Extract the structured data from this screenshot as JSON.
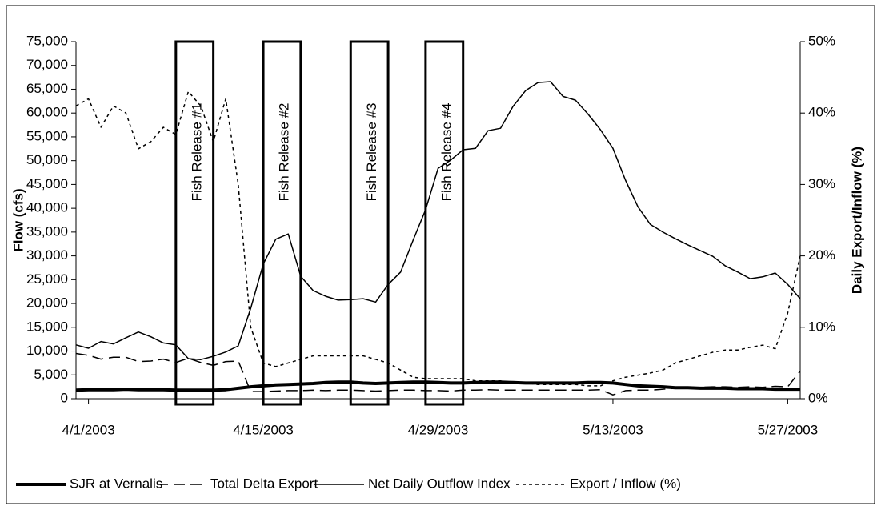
{
  "chart_data": {
    "type": "line",
    "y_label": "Flow (cfs)",
    "y2_label": "Daily Export/Inflow (%)",
    "x": [
      "2003-03-31",
      "2003-04-01",
      "2003-04-02",
      "2003-04-03",
      "2003-04-04",
      "2003-04-05",
      "2003-04-06",
      "2003-04-07",
      "2003-04-08",
      "2003-04-09",
      "2003-04-10",
      "2003-04-11",
      "2003-04-12",
      "2003-04-13",
      "2003-04-14",
      "2003-04-15",
      "2003-04-16",
      "2003-04-17",
      "2003-04-18",
      "2003-04-19",
      "2003-04-20",
      "2003-04-21",
      "2003-04-22",
      "2003-04-23",
      "2003-04-24",
      "2003-04-25",
      "2003-04-26",
      "2003-04-27",
      "2003-04-28",
      "2003-04-29",
      "2003-04-30",
      "2003-05-01",
      "2003-05-02",
      "2003-05-03",
      "2003-05-04",
      "2003-05-05",
      "2003-05-06",
      "2003-05-07",
      "2003-05-08",
      "2003-05-09",
      "2003-05-10",
      "2003-05-11",
      "2003-05-12",
      "2003-05-13",
      "2003-05-14",
      "2003-05-15",
      "2003-05-16",
      "2003-05-17",
      "2003-05-18",
      "2003-05-19",
      "2003-05-20",
      "2003-05-21",
      "2003-05-22",
      "2003-05-23",
      "2003-05-24",
      "2003-05-25",
      "2003-05-26",
      "2003-05-27",
      "2003-05-28"
    ],
    "xlim": [
      "2003-03-31",
      "2003-05-28"
    ],
    "xticks": [
      {
        "value": "2003-04-01",
        "label": "4/1/2003"
      },
      {
        "value": "2003-04-15",
        "label": "4/15/2003"
      },
      {
        "value": "2003-04-29",
        "label": "4/29/2003"
      },
      {
        "value": "2003-05-13",
        "label": "5/13/2003"
      },
      {
        "value": "2003-05-27",
        "label": "5/27/2003"
      }
    ],
    "ylim": [
      0,
      75000
    ],
    "yticks": [
      0,
      {
        "value": 5000,
        "label": "5,000"
      },
      {
        "value": 10000,
        "label": "10,000"
      },
      {
        "value": 15000,
        "label": "15,000"
      },
      {
        "value": 20000,
        "label": "20,000"
      },
      {
        "value": 25000,
        "label": "25,000"
      },
      {
        "value": 30000,
        "label": "30,000"
      },
      {
        "value": 35000,
        "label": "35,000"
      },
      {
        "value": 40000,
        "label": "40,000"
      },
      {
        "value": 45000,
        "label": "45,000"
      },
      {
        "value": 50000,
        "label": "50,000"
      },
      {
        "value": 55000,
        "label": "55,000"
      },
      {
        "value": 60000,
        "label": "60,000"
      },
      {
        "value": 65000,
        "label": "65,000"
      },
      {
        "value": 70000,
        "label": "70,000"
      },
      {
        "value": 75000,
        "label": "75,000"
      }
    ],
    "y2lim": [
      0,
      50
    ],
    "y2ticks": [
      {
        "value": 0,
        "label": "0%"
      },
      {
        "value": 10,
        "label": "10%"
      },
      {
        "value": 20,
        "label": "20%"
      },
      {
        "value": 30,
        "label": "30%"
      },
      {
        "value": 40,
        "label": "40%"
      },
      {
        "value": 50,
        "label": "50%"
      }
    ],
    "legend": "bottom",
    "series": [
      {
        "name": "SJR at Vernalis",
        "color": "#000000",
        "line_style": "solid",
        "line_width": 4,
        "values": [
          1800,
          1900,
          1900,
          1900,
          2000,
          1900,
          1900,
          1900,
          1800,
          1800,
          1800,
          1800,
          1900,
          2200,
          2500,
          2700,
          2900,
          3000,
          3100,
          3200,
          3400,
          3500,
          3500,
          3300,
          3200,
          3300,
          3400,
          3500,
          3500,
          3400,
          3300,
          3300,
          3400,
          3500,
          3500,
          3400,
          3300,
          3300,
          3300,
          3300,
          3300,
          3400,
          3400,
          3300,
          3000,
          2700,
          2600,
          2500,
          2300,
          2300,
          2200,
          2200,
          2200,
          2100,
          2100,
          2100,
          2000,
          2000,
          2000
        ]
      },
      {
        "name": "Total Delta Export",
        "color": "#000000",
        "line_style": "dashed",
        "line_width": 1.5,
        "values": [
          9500,
          9100,
          8300,
          8700,
          8700,
          7800,
          7900,
          8300,
          7600,
          8500,
          7600,
          7000,
          7800,
          7900,
          1500,
          1500,
          1600,
          1700,
          1700,
          1800,
          1700,
          1800,
          1800,
          1700,
          1600,
          1700,
          1800,
          1800,
          1700,
          1700,
          1600,
          1800,
          1800,
          1900,
          1800,
          1800,
          1800,
          1800,
          1800,
          1800,
          1800,
          1800,
          1900,
          800,
          1700,
          1800,
          1800,
          2000,
          2200,
          2300,
          2400,
          2500,
          2500,
          2400,
          2500,
          2400,
          2600,
          2500,
          5800
        ]
      },
      {
        "name": "Net Daily Outflow Index",
        "color": "#000000",
        "line_style": "solid",
        "line_width": 1.5,
        "values": [
          11300,
          10600,
          12000,
          11500,
          12800,
          14000,
          13000,
          11700,
          11300,
          8400,
          8200,
          8900,
          9800,
          11100,
          19000,
          28300,
          33500,
          34600,
          25700,
          22700,
          21500,
          20700,
          20800,
          21000,
          20300,
          24000,
          26600,
          33300,
          39700,
          48400,
          50100,
          52300,
          52600,
          56300,
          56800,
          61400,
          64700,
          66400,
          66600,
          63500,
          62700,
          59800,
          56500,
          52600,
          45900,
          40300,
          36600,
          35000,
          33600,
          32300,
          31100,
          29900,
          27900,
          26600,
          25200,
          25600,
          26400,
          24000,
          21000
        ]
      },
      {
        "name": "Export / Inflow (%)",
        "color": "#000000",
        "line_style": "dotted",
        "line_width": 1.5,
        "axis": "y2",
        "values": [
          41,
          42,
          38,
          41,
          40,
          35,
          36,
          38,
          37,
          43,
          41,
          36,
          42,
          30,
          10,
          5,
          4.5,
          5,
          5.5,
          6,
          6,
          6,
          6,
          6,
          5.5,
          5,
          4,
          3,
          2.8,
          2.8,
          2.8,
          2.8,
          2.5,
          2.5,
          2.5,
          2.3,
          2.2,
          2.0,
          2.0,
          2.0,
          2.0,
          1.8,
          1.8,
          2.5,
          3,
          3.3,
          3.6,
          4,
          5,
          5.5,
          6,
          6.5,
          6.8,
          6.8,
          7.2,
          7.5,
          7,
          12,
          20
        ]
      }
    ],
    "annotations": [
      {
        "text": "Fish Release #1",
        "start": "2003-04-08",
        "end": "2003-04-11"
      },
      {
        "text": "Fish Release #2",
        "start": "2003-04-15",
        "end": "2003-04-18"
      },
      {
        "text": "Fish Release #3",
        "start": "2003-04-22",
        "end": "2003-04-25"
      },
      {
        "text": "Fish Release #4",
        "start": "2003-04-28",
        "end": "2003-05-01"
      }
    ]
  }
}
